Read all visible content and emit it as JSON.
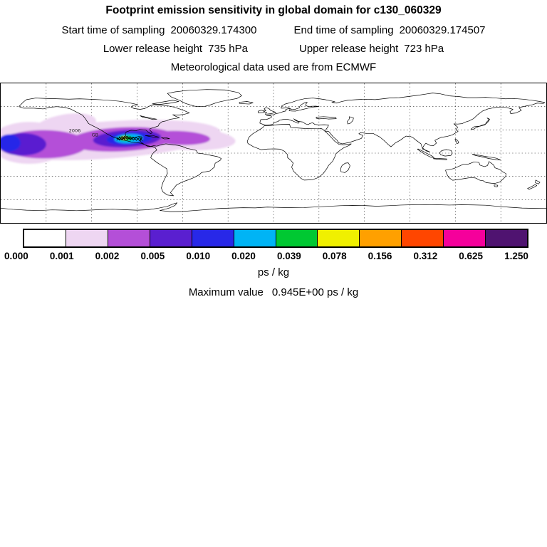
{
  "header": {
    "title": "Footprint emission sensitivity in global domain for c130_060329",
    "start": {
      "label": "Start time of sampling",
      "value": "20060329.174300"
    },
    "end": {
      "label": "End time of sampling",
      "value": "20060329.174507"
    },
    "lower": {
      "label": "Lower release height",
      "value": "735 hPa"
    },
    "upper": {
      "label": "Upper release height",
      "value": "723 hPa"
    },
    "met": "Meteorological data used are from ECMWF"
  },
  "legend": {
    "units": "ps / kg",
    "max_label": "Maximum value",
    "max_value": "0.945E+00 ps / kg"
  },
  "chart_data": {
    "type": "heatmap",
    "title": "Footprint emission sensitivity in global domain for c130_060329",
    "units": "ps / kg",
    "max_value": "0.945E+00",
    "levels": [
      0.0,
      0.001,
      0.002,
      0.005,
      0.01,
      0.02,
      0.039,
      0.078,
      0.156,
      0.312,
      0.625,
      1.25
    ],
    "tick_labels": [
      "0.000",
      "0.001",
      "0.002",
      "0.005",
      "0.010",
      "0.020",
      "0.039",
      "0.078",
      "0.156",
      "0.312",
      "0.625",
      "1.250"
    ],
    "colors": [
      "#ffffff",
      "#eed6f2",
      "#b44fd8",
      "#5a1fd0",
      "#2828e8",
      "#00b4f5",
      "#00c832",
      "#f0f000",
      "#ffa000",
      "#ff4600",
      "#f5009b",
      "#4f1370"
    ],
    "domain": {
      "lon_min": -180,
      "lon_max": 180,
      "lat_min": -90,
      "lat_max": 90
    },
    "grid": {
      "lon_step": 30,
      "lat_step": 30,
      "style": "dashed"
    },
    "legend_position": "bottom-colorbar"
  },
  "map": {
    "plume": [
      {
        "level": 1,
        "lon": -109.7,
        "lat": 16.9,
        "rlon": 75,
        "rlat": 24,
        "rot": -4
      },
      {
        "level": 1,
        "lon": -161.2,
        "lat": 13.2,
        "rlon": 26,
        "rlat": 27,
        "rot": 0
      },
      {
        "level": 1,
        "lon": -137.8,
        "lat": 35.2,
        "rlon": 21,
        "rlat": 14.6,
        "rot": -10
      },
      {
        "level": 1,
        "lon": -58.1,
        "lat": 18.7,
        "rlon": 33,
        "rlat": 14.6,
        "rot": 3
      },
      {
        "level": 2,
        "lon": -151.9,
        "lat": 11.4,
        "rlon": 29,
        "rlat": 18.3,
        "rot": 0
      },
      {
        "level": 2,
        "lon": -100.3,
        "lat": 17.8,
        "rlon": 35,
        "rlat": 15.5,
        "rot": -3
      },
      {
        "level": 2,
        "lon": -62.8,
        "lat": 19.6,
        "rlon": 21,
        "rlat": 9.1,
        "rot": 2
      },
      {
        "level": 3,
        "lon": -165.9,
        "lat": 11.4,
        "rlon": 16,
        "rlat": 14.6,
        "rot": 0
      },
      {
        "level": 3,
        "lon": -96.6,
        "lat": 18.7,
        "rlon": 22.5,
        "rlat": 11,
        "rot": -3
      },
      {
        "level": 4,
        "lon": -95.2,
        "lat": 18.7,
        "rlon": 15,
        "rlat": 8.2,
        "rot": -3
      },
      {
        "level": 4,
        "lon": -174.4,
        "lat": 13.2,
        "rlon": 7.5,
        "rlat": 11,
        "rot": 0
      },
      {
        "level": 5,
        "lon": -95.6,
        "lat": 18.7,
        "rlon": 9.4,
        "rlat": 5.9,
        "rot": -3
      },
      {
        "level": 6,
        "lon": -97.5,
        "lat": 19.2,
        "rlon": 4.7,
        "rlat": 3.7,
        "rot": 0
      },
      {
        "level": 7,
        "lon": -98.7,
        "lat": 19.5,
        "rlon": 1.6,
        "rlat": 1.8,
        "rot": 0
      }
    ],
    "track": [
      [
        -102.5,
        18.5
      ],
      [
        -100.8,
        19.2
      ],
      [
        -99.2,
        19.6
      ],
      [
        -97.5,
        19.9
      ],
      [
        -95.5,
        19.5
      ],
      [
        -93.5,
        19.0
      ],
      [
        -91.5,
        18.6
      ],
      [
        -89.5,
        18.3
      ],
      [
        -87.5,
        18.0
      ],
      [
        -98.9,
        19.4
      ]
    ],
    "annotations": [
      {
        "text": "2006",
        "lon": -135,
        "lat": 27
      },
      {
        "text": "GB",
        "lon": -120,
        "lat": 21.5
      }
    ]
  }
}
